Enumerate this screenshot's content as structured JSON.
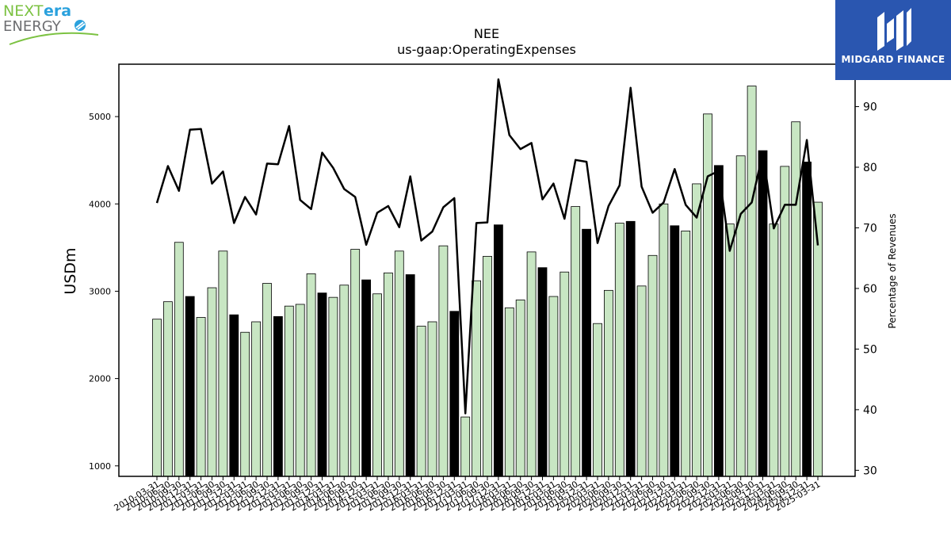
{
  "logos": {
    "left_text_a": "NEXT",
    "left_text_b": "era",
    "left_text_c": "ENERGY",
    "right_text": "MIDGARD FINANCE",
    "colors": {
      "green": "#7cc242",
      "blue": "#2aa1dd",
      "gray": "#6d6e71",
      "brand_bg": "#2a56b0"
    }
  },
  "chart_data": {
    "type": "bar",
    "title": "NEE",
    "subtitle": "us-gaap:OperatingExpenses",
    "ylabel": "USDm",
    "y2label": "Percentage of Revenues",
    "ylim": [
      880,
      5600
    ],
    "y2lim": [
      29,
      97
    ],
    "yticks": [
      1000,
      2000,
      3000,
      4000,
      5000
    ],
    "y2ticks": [
      30,
      40,
      50,
      60,
      70,
      80,
      90
    ],
    "colors": {
      "bar_light": "#c8e6c3",
      "bar_dark": "#000000",
      "line": "#000000"
    },
    "categories": [
      "2010-03-31",
      "2010-06-30",
      "2010-09-30",
      "2010-12-31",
      "2011-03-31",
      "2011-06-30",
      "2011-09-30",
      "2011-12-31",
      "2012-03-31",
      "2012-06-30",
      "2012-09-30",
      "2012-12-31",
      "2013-03-31",
      "2013-06-30",
      "2013-09-30",
      "2013-12-31",
      "2014-03-31",
      "2014-06-30",
      "2014-09-30",
      "2014-12-31",
      "2015-03-31",
      "2015-06-30",
      "2015-09-30",
      "2015-12-31",
      "2016-03-31",
      "2016-06-30",
      "2016-09-30",
      "2016-12-31",
      "2017-03-31",
      "2017-06-30",
      "2017-09-30",
      "2017-12-31",
      "2018-03-31",
      "2018-06-30",
      "2018-09-30",
      "2018-12-31",
      "2019-03-31",
      "2019-06-30",
      "2019-09-30",
      "2019-12-31",
      "2020-03-31",
      "2020-06-30",
      "2020-09-30",
      "2020-12-31",
      "2021-03-31",
      "2021-06-30",
      "2021-09-30",
      "2021-12-31",
      "2022-03-31",
      "2022-06-30",
      "2022-09-30",
      "2022-12-31",
      "2023-03-31",
      "2023-06-30",
      "2023-09-30",
      "2023-12-31",
      "2024-03-31",
      "2024-06-30",
      "2024-09-30",
      "2024-12-31",
      "2025-03-31"
    ],
    "series": [
      {
        "type": "bar",
        "values": [
          2680,
          2880,
          3560,
          2940,
          2700,
          3040,
          3460,
          2730,
          2530,
          2650,
          3090,
          2710,
          2830,
          2850,
          3200,
          2980,
          2930,
          3070,
          3480,
          3130,
          2970,
          3210,
          3460,
          3190,
          2600,
          2650,
          3520,
          2770,
          1560,
          3120,
          3400,
          3760,
          2810,
          2900,
          3450,
          3270,
          2940,
          3220,
          3970,
          3710,
          2630,
          3010,
          3780,
          3800,
          3060,
          3410,
          4000,
          3750,
          3690,
          4230,
          5030,
          4440,
          3770,
          4550,
          5350,
          4610,
          3770,
          4430,
          4940,
          4480,
          4020
        ],
        "dark": [
          false,
          false,
          false,
          true,
          false,
          false,
          false,
          true,
          false,
          false,
          false,
          true,
          false,
          false,
          false,
          true,
          false,
          false,
          false,
          true,
          false,
          false,
          false,
          true,
          false,
          false,
          false,
          true,
          false,
          false,
          false,
          true,
          false,
          false,
          false,
          true,
          false,
          false,
          false,
          true,
          false,
          false,
          false,
          true,
          false,
          false,
          false,
          true,
          false,
          false,
          false,
          true,
          false,
          false,
          false,
          true,
          false,
          false,
          false,
          true,
          false
        ]
      },
      {
        "type": "line",
        "axis": "right",
        "values": [
          74.1,
          80.2,
          76.1,
          86.2,
          86.3,
          77.3,
          79.3,
          70.8,
          75.1,
          72.2,
          80.6,
          80.5,
          86.8,
          74.6,
          73.1,
          82.4,
          79.9,
          76.4,
          75.1,
          67.2,
          72.5,
          73.6,
          70.1,
          78.5,
          67.9,
          69.4,
          73.4,
          74.9,
          39.4,
          70.8,
          70.9,
          94.5,
          85.3,
          83.0,
          84.0,
          74.7,
          77.3,
          71.5,
          81.2,
          80.9,
          67.5,
          73.6,
          77.0,
          93.1,
          76.8,
          72.5,
          74.2,
          79.7,
          73.8,
          71.7,
          78.5,
          79.4,
          66.2,
          72.3,
          74.2,
          82.4,
          69.9,
          73.8,
          73.8,
          84.5,
          67.1
        ]
      }
    ],
    "grid": false,
    "legend": "none"
  }
}
